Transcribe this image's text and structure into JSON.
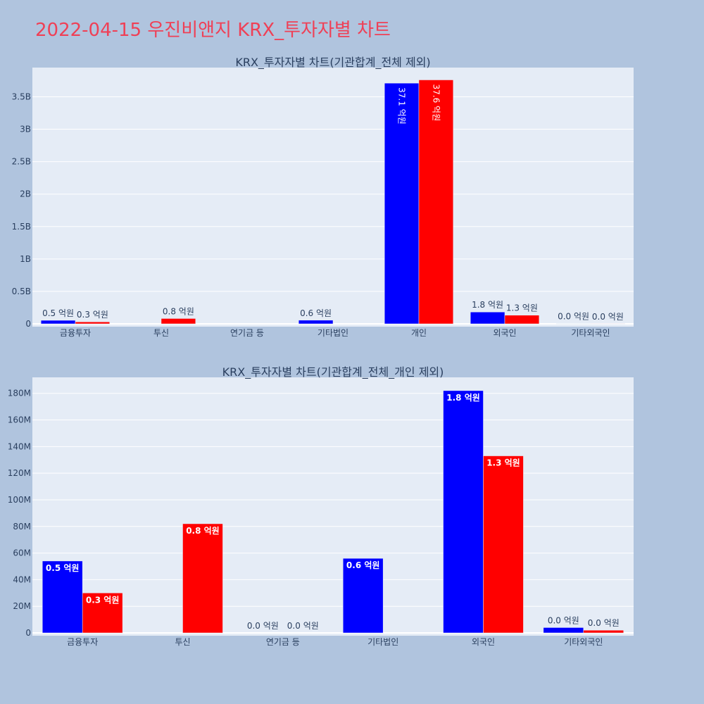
{
  "page": {
    "title": "2022-04-15 우진비앤지 KRX_투자자별 차트"
  },
  "chart_data": [
    {
      "type": "bar",
      "title": "KRX_투자자별 차트(기관합계_전체 제외)",
      "categories": [
        "금융투자",
        "투신",
        "연기금 등",
        "기타법인",
        "개인",
        "외국인",
        "기타외국인"
      ],
      "series": [
        {
          "color": "#0000ff",
          "values": [
            54000000,
            null,
            null,
            56000000,
            3710000000,
            182000000,
            4000000
          ],
          "labels": [
            "0.5 억원",
            "",
            "",
            "0.6 억원",
            "37.1 억원",
            "1.8 억원",
            "0.0 억원"
          ]
        },
        {
          "color": "#ff0000",
          "values": [
            30000000,
            82000000,
            null,
            null,
            3760000000,
            133000000,
            2000000
          ],
          "labels": [
            "0.3 억원",
            "0.8 억원",
            "",
            "",
            "37.6 억원",
            "1.3 억원",
            "0.0 억원"
          ]
        }
      ],
      "ylim": [
        0,
        3950000000
      ],
      "yticks": [
        0,
        500000000,
        1000000000,
        1500000000,
        2000000000,
        2500000000,
        3000000000,
        3500000000
      ],
      "ytick_labels": [
        "0",
        "0.5B",
        "1B",
        "1.5B",
        "2B",
        "2.5B",
        "3B",
        "3.5B"
      ],
      "barmode": "group",
      "grid": true,
      "legend": "none"
    },
    {
      "type": "bar",
      "title": "KRX_투자자별 차트(기관합계_전체_개인 제외)",
      "categories": [
        "금융투자",
        "투신",
        "연기금 등",
        "기타법인",
        "외국인",
        "기타외국인"
      ],
      "series": [
        {
          "color": "#0000ff",
          "values": [
            54000000,
            null,
            0,
            56000000,
            182000000,
            4000000
          ],
          "labels": [
            "0.5 억원",
            "",
            "0.0 억원",
            "0.6 억원",
            "1.8 억원",
            "0.0 억원"
          ]
        },
        {
          "color": "#ff0000",
          "values": [
            30000000,
            82000000,
            0,
            null,
            133000000,
            2000000
          ],
          "labels": [
            "0.3 억원",
            "0.8 억원",
            "0.0 억원",
            "",
            "1.3 억원",
            "0.0 억원"
          ]
        }
      ],
      "ylim": [
        0,
        192000000
      ],
      "yticks": [
        0,
        20000000,
        40000000,
        60000000,
        80000000,
        100000000,
        120000000,
        140000000,
        160000000,
        180000000
      ],
      "ytick_labels": [
        "0",
        "20M",
        "40M",
        "60M",
        "80M",
        "100M",
        "120M",
        "140M",
        "160M",
        "180M"
      ],
      "barmode": "group",
      "grid": true,
      "legend": "none"
    }
  ]
}
